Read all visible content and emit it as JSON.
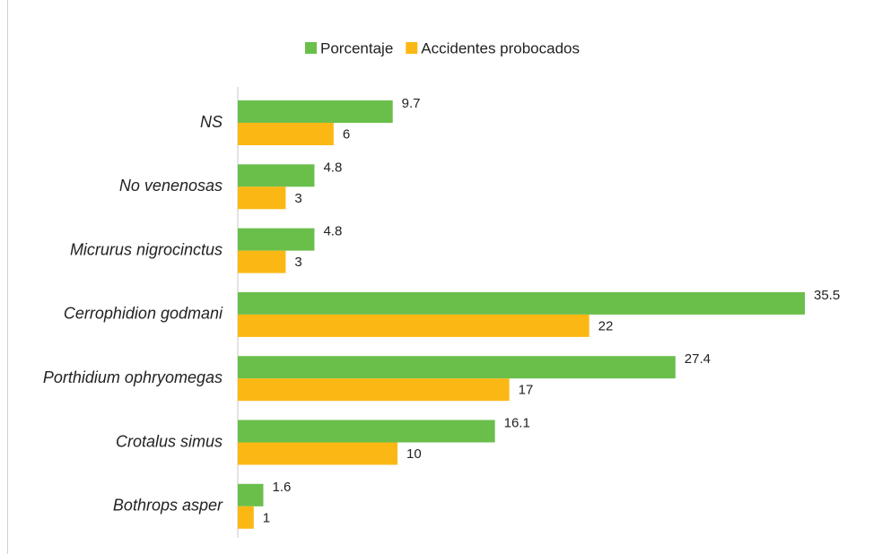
{
  "chart_data": {
    "type": "bar",
    "orientation": "horizontal",
    "categories": [
      "NS",
      "No venenosas",
      "Micrurus nigrocinctus",
      "Cerrophidion godmani",
      "Porthidium ophryomegas",
      "Crotalus simus",
      "Bothrops asper"
    ],
    "series": [
      {
        "name": "Porcentaje",
        "color": "#6abf4b",
        "values": [
          9.7,
          4.8,
          4.8,
          35.5,
          27.4,
          16.1,
          1.6
        ]
      },
      {
        "name": "Accidentes probocados",
        "color": "#fbb814",
        "values": [
          6,
          3,
          3,
          22,
          17,
          10,
          1
        ]
      }
    ],
    "legend": "top"
  }
}
